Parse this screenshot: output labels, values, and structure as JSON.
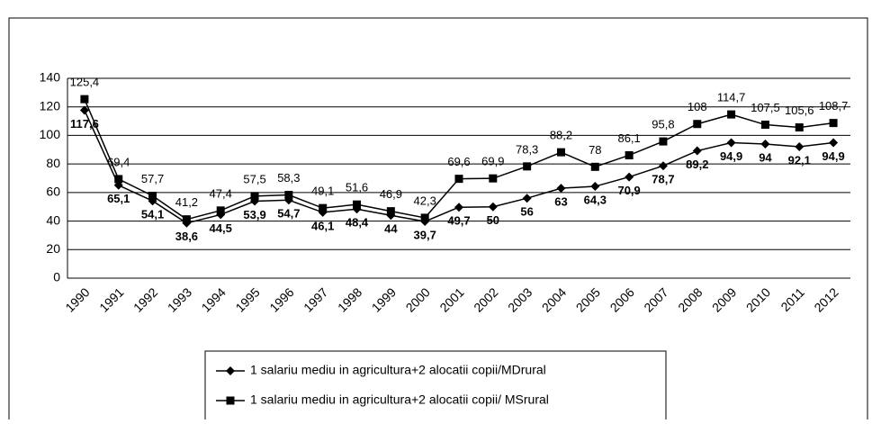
{
  "chart_data": {
    "type": "line",
    "categories": [
      "1990",
      "1991",
      "1992",
      "1993",
      "1994",
      "1995",
      "1996",
      "1997",
      "1998",
      "1999",
      "2000",
      "2001",
      "2002",
      "2003",
      "2004",
      "2005",
      "2006",
      "2007",
      "2008",
      "2009",
      "2010",
      "2011",
      "2012"
    ],
    "series": [
      {
        "name": "1 salariu mediu in agricultura+2 alocatii copii/MDrural",
        "color": "#000000",
        "marker": "diamond",
        "values": [
          117.6,
          65.1,
          54.1,
          38.6,
          44.5,
          53.9,
          54.7,
          46.1,
          48.4,
          44,
          39.7,
          49.7,
          50,
          56,
          63,
          64.3,
          70.9,
          78.7,
          89.2,
          94.9,
          94,
          92.1,
          94.9
        ],
        "value_labels": [
          "117,6",
          "65,1",
          "54,1",
          "38,6",
          "44,5",
          "53,9",
          "54,7",
          "46,1",
          "48,4",
          "44",
          "39,7",
          "49,7",
          "50",
          "56",
          "63",
          "64,3",
          "70,9",
          "78,7",
          "89,2",
          "94,9",
          "94",
          "92,1",
          "94,9"
        ]
      },
      {
        "name": "1 salariu mediu in agricultura+2 alocatii copii/ MSrural",
        "color": "#000000",
        "marker": "square",
        "values": [
          125.4,
          69.4,
          57.7,
          41.2,
          47.4,
          57.5,
          58.3,
          49.1,
          51.6,
          46.9,
          42.3,
          69.6,
          69.9,
          78.3,
          88.2,
          78,
          86.1,
          95.8,
          108,
          114.7,
          107.5,
          105.6,
          108.7
        ],
        "value_labels": [
          "125,4",
          "69,4",
          "57,7",
          "41,2",
          "47,4",
          "57,5",
          "58,3",
          "49,1",
          "51,6",
          "46,9",
          "42,3",
          "69,6",
          "69,9",
          "78,3",
          "88,2",
          "78",
          "86,1",
          "95,8",
          "108",
          "114,7",
          "107,5",
          "105,6",
          "108,7"
        ]
      }
    ],
    "ylim": [
      0,
      140
    ],
    "yticks": [
      0,
      20,
      40,
      60,
      80,
      100,
      120,
      140
    ],
    "grid": true
  }
}
